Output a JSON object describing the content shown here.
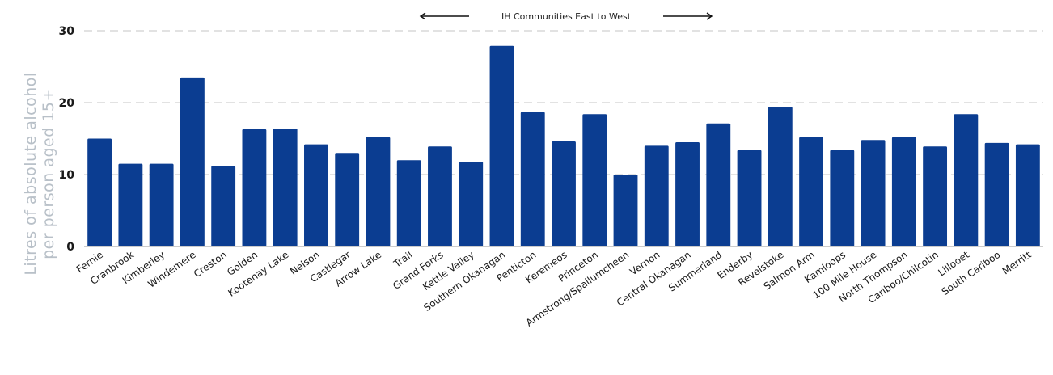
{
  "chart_data": {
    "type": "bar",
    "title": "",
    "ylabel": [
      "Litres of absolute alcohol",
      "per person aged 15+"
    ],
    "xlabel": "",
    "ylim": [
      0,
      30
    ],
    "yticks": [
      "0",
      "10",
      "20",
      "30"
    ],
    "grid": true,
    "annotation": "IH Communities East to West",
    "bar_color": "#0b3d91",
    "categories": [
      "Fernie",
      "Cranbrook",
      "Kimberley",
      "Windemere",
      "Creston",
      "Golden",
      "Kootenay Lake",
      "Nelson",
      "Castlegar",
      "Arrow Lake",
      "Trail",
      "Grand Forks",
      "Kettle Valley",
      "Southern Okanagan",
      "Penticton",
      "Keremeos",
      "Princeton",
      "Armstrong/Spallumcheen",
      "Vernon",
      "Central Okanagan",
      "Summerland",
      "Enderby",
      "Revelstoke",
      "Salmon Arm",
      "Kamloops",
      "100 Mile House",
      "North Thompson",
      "Cariboo/Chilcotin",
      "Lillooet",
      "South Cariboo",
      "Merritt"
    ],
    "values": [
      15.0,
      11.5,
      11.5,
      23.5,
      11.2,
      16.3,
      16.4,
      14.2,
      13.0,
      15.2,
      12.0,
      13.9,
      11.8,
      27.9,
      18.7,
      14.6,
      18.4,
      10.0,
      14.0,
      14.5,
      17.1,
      13.4,
      19.4,
      15.2,
      13.4,
      14.8,
      15.2,
      13.9,
      18.4,
      14.4,
      14.2
    ]
  }
}
